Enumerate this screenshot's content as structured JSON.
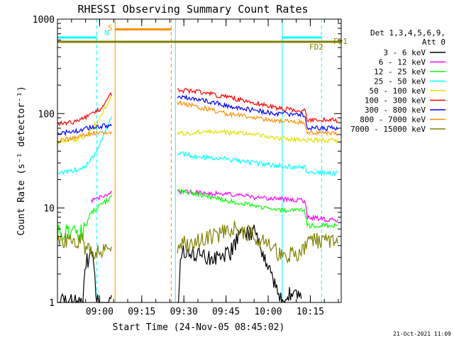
{
  "chart_data": {
    "type": "line",
    "title": "RHESSI Observing Summary Count Rates",
    "xlabel": "Start Time (24-Nov-05 08:45:02)",
    "ylabel": "Count Rate (s⁻¹ detector⁻¹)",
    "yscale": "log",
    "ylim": [
      1,
      1000
    ],
    "xlim_minutes": [
      0,
      101
    ],
    "x_ticks": [
      {
        "label": "09:00",
        "value": 15
      },
      {
        "label": "09:15",
        "value": 30
      },
      {
        "label": "09:30",
        "value": 45
      },
      {
        "label": "09:45",
        "value": 60
      },
      {
        "label": "10:00",
        "value": 75
      },
      {
        "label": "10:15",
        "value": 90
      }
    ],
    "y_ticks": [
      {
        "label": "1",
        "value": 1
      },
      {
        "label": "10",
        "value": 10
      },
      {
        "label": "100",
        "value": 100
      },
      {
        "label": "1000",
        "value": 1000
      }
    ],
    "legend_header": [
      "Det 1,3,4,5,6,9,",
      "Att 0"
    ],
    "series": [
      {
        "name": "3 - 6 keV",
        "color": "#000000",
        "points": [
          [
            0,
            1
          ],
          [
            9,
            1
          ],
          [
            10,
            2.8
          ],
          [
            13,
            2.8
          ],
          [
            14,
            1
          ],
          [
            43,
            1
          ],
          [
            44,
            3.5
          ],
          [
            58,
            2.8
          ],
          [
            62,
            3.5
          ],
          [
            65,
            5.5
          ],
          [
            70,
            5.5
          ],
          [
            74,
            3
          ],
          [
            80,
            1
          ],
          [
            82,
            1.2
          ],
          [
            86,
            1.2
          ],
          [
            87,
            1
          ]
        ]
      },
      {
        "name": "6 - 12 keV",
        "color": "#ff00ff",
        "points": [
          [
            12,
            12
          ],
          [
            14,
            12.5
          ],
          [
            18,
            14
          ],
          [
            19,
            15
          ],
          [
            43,
            15
          ],
          [
            50,
            14.5
          ],
          [
            60,
            14
          ],
          [
            70,
            13
          ],
          [
            79,
            12.5
          ],
          [
            88,
            12
          ],
          [
            89,
            8
          ],
          [
            96,
            7.5
          ],
          [
            100,
            7.5
          ]
        ]
      },
      {
        "name": "12 - 25 keV",
        "color": "#00ff00",
        "points": [
          [
            0,
            5.5
          ],
          [
            9,
            5.5
          ],
          [
            12,
            9
          ],
          [
            16,
            11
          ],
          [
            19,
            13
          ],
          [
            43,
            15
          ],
          [
            50,
            14
          ],
          [
            60,
            12
          ],
          [
            70,
            10.5
          ],
          [
            79,
            9.5
          ],
          [
            88,
            9.5
          ],
          [
            89,
            6.5
          ],
          [
            100,
            6.5
          ]
        ]
      },
      {
        "name": "25 - 50 keV",
        "color": "#00ffff",
        "points": [
          [
            0,
            23
          ],
          [
            6,
            25
          ],
          [
            10,
            28
          ],
          [
            14,
            40
          ],
          [
            19,
            90
          ],
          [
            43,
            38
          ],
          [
            50,
            35
          ],
          [
            60,
            33
          ],
          [
            70,
            30
          ],
          [
            79,
            28
          ],
          [
            88,
            27
          ],
          [
            89,
            24
          ],
          [
            100,
            23.5
          ]
        ]
      },
      {
        "name": "50 - 100 keV",
        "color": "#e0e000",
        "points": [
          [
            0,
            50
          ],
          [
            6,
            53
          ],
          [
            10,
            58
          ],
          [
            14,
            80
          ],
          [
            19,
            150
          ],
          [
            43,
            62
          ],
          [
            52,
            64
          ],
          [
            60,
            63
          ],
          [
            70,
            60
          ],
          [
            78,
            55
          ],
          [
            88,
            53
          ],
          [
            89,
            52
          ],
          [
            100,
            52
          ]
        ]
      },
      {
        "name": "100 - 300 keV",
        "color": "#ff0000",
        "points": [
          [
            0,
            78
          ],
          [
            5,
            80
          ],
          [
            10,
            90
          ],
          [
            15,
            110
          ],
          [
            19,
            160
          ],
          [
            43,
            178
          ],
          [
            50,
            170
          ],
          [
            60,
            150
          ],
          [
            70,
            130
          ],
          [
            80,
            112
          ],
          [
            88,
            108
          ],
          [
            89,
            86
          ],
          [
            100,
            85
          ]
        ]
      },
      {
        "name": "300 - 800 keV",
        "color": "#0000ff",
        "points": [
          [
            0,
            62
          ],
          [
            6,
            64
          ],
          [
            12,
            72
          ],
          [
            19,
            75
          ],
          [
            43,
            152
          ],
          [
            50,
            142
          ],
          [
            60,
            122
          ],
          [
            70,
            108
          ],
          [
            78,
            100
          ],
          [
            88,
            98
          ],
          [
            89,
            70
          ],
          [
            100,
            70
          ]
        ]
      },
      {
        "name": "800 - 7000 keV",
        "color": "#ff8c00",
        "points": [
          [
            0,
            52
          ],
          [
            6,
            55
          ],
          [
            12,
            62
          ],
          [
            19,
            64
          ],
          [
            43,
            130
          ],
          [
            50,
            118
          ],
          [
            60,
            100
          ],
          [
            70,
            90
          ],
          [
            78,
            84
          ],
          [
            88,
            80
          ],
          [
            89,
            63
          ],
          [
            100,
            62
          ]
        ]
      },
      {
        "name": "7000 - 15000 keV",
        "color": "#808000",
        "points": [
          [
            0,
            4.5
          ],
          [
            9,
            4.5
          ],
          [
            10,
            3.5
          ],
          [
            19,
            3.5
          ],
          [
            43,
            4
          ],
          [
            56,
            5
          ],
          [
            62,
            6
          ],
          [
            65,
            6
          ],
          [
            70,
            5
          ],
          [
            74,
            4.5
          ],
          [
            80,
            3
          ],
          [
            88,
            3.5
          ],
          [
            89,
            4.5
          ],
          [
            100,
            4.5
          ]
        ]
      }
    ],
    "vertical_lines": [
      {
        "at": 0,
        "color": "#00ffff",
        "style": "solid"
      },
      {
        "at": 14,
        "color": "#00ffff",
        "style": "dashed"
      },
      {
        "at": 20.5,
        "color": "#ff8c00",
        "style": "solid"
      },
      {
        "at": 40.5,
        "color": "#ff8c00",
        "style": "dashed"
      },
      {
        "at": 42,
        "color": "#00ffff",
        "style": "solid"
      },
      {
        "at": 80,
        "color": "#00ffff",
        "style": "solid"
      },
      {
        "at": 94,
        "color": "#00ffff",
        "style": "dashed"
      }
    ],
    "state_bars": [
      {
        "label": "N",
        "color": "#00ffff",
        "y": 640,
        "segments": [
          [
            0,
            14
          ],
          [
            80,
            94
          ]
        ]
      },
      {
        "label": "S",
        "color": "#ff8c00",
        "y": 780,
        "segments": [
          [
            20.5,
            40.5
          ]
        ]
      },
      {
        "label": "FD1",
        "color": "#808000",
        "y": 575,
        "segments": [
          [
            0,
            101
          ]
        ]
      }
    ],
    "annotations": {
      "n_label": "N",
      "s_label": "S",
      "fd1_label": "FD1",
      "fd2_label": "FD2"
    },
    "footer_timestamp": "21-Oct-2021 11:09"
  }
}
